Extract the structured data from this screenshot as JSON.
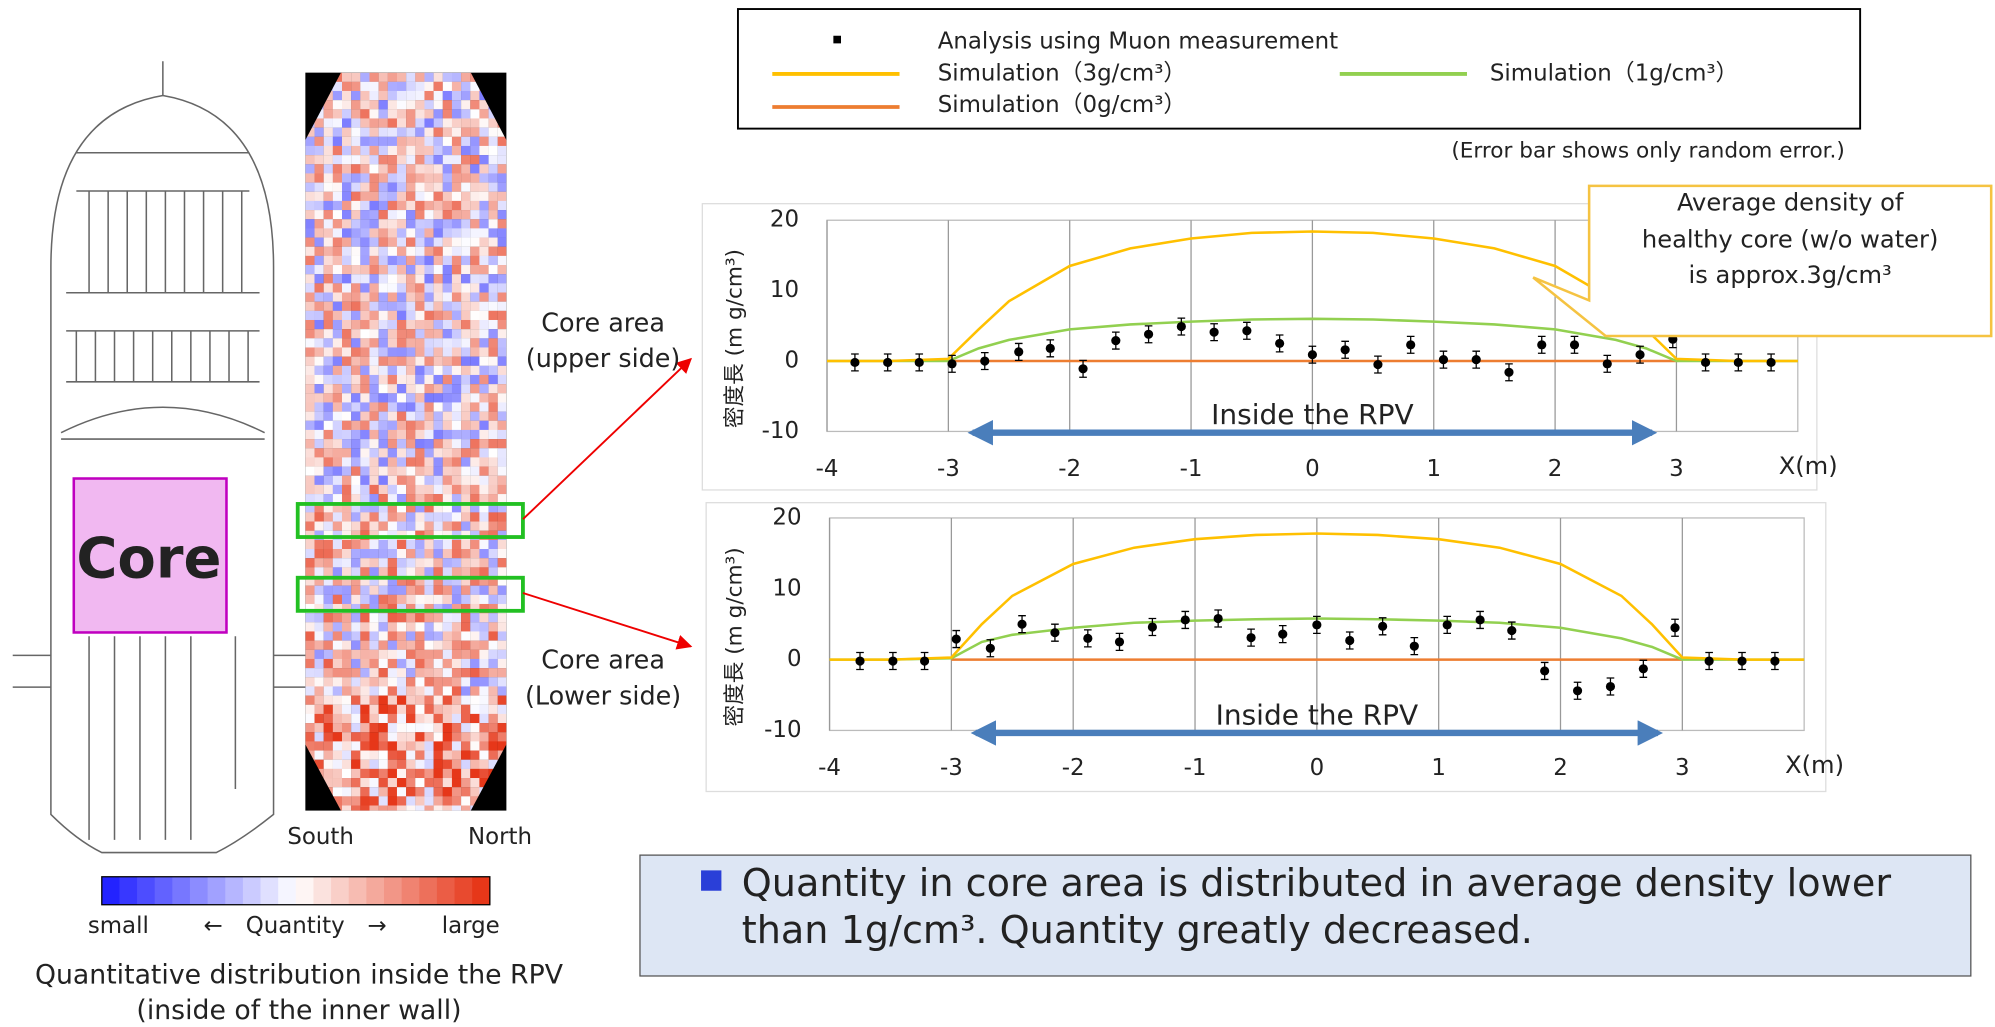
{
  "labels": {
    "core": "Core",
    "south": "South",
    "north": "North",
    "scale_small": "small",
    "scale_mid": "←　Quantity　→",
    "scale_large": "large",
    "caption": [
      "Quantitative distribution inside the RPV",
      "(inside of the inner wall)"
    ],
    "core_upper": [
      "Core area",
      "(upper side)"
    ],
    "core_lower": [
      "Core area",
      "(Lower side)"
    ],
    "error_note": "(Error bar shows only random error.)",
    "callout": [
      "Average density of",
      "healthy core (w/o water)",
      "is approx.3g/cm³"
    ],
    "conclusion": [
      "Quantity in core area is distributed in average density lower",
      "than 1g/cm³. Quantity greatly decreased."
    ]
  },
  "chart_data": [
    {
      "type": "line",
      "y_label": "密度長 (m g/cm³)",
      "x_label": "X(m)",
      "annotation": "Inside the RPV",
      "xlim": [
        -4,
        4
      ],
      "ylim": [
        -10,
        20
      ],
      "xticks": [
        -4,
        -3,
        -2,
        -1,
        0,
        1,
        2,
        3
      ],
      "yticks": [
        -10,
        0,
        10,
        20
      ],
      "grid": true,
      "series": [
        {
          "name": "Analysis using Muon measurement",
          "color": "#000000",
          "x": [
            -3.77,
            -3.5,
            -3.24,
            -2.97,
            -2.7,
            -2.42,
            -2.16,
            -1.89,
            -1.62,
            -1.35,
            -1.08,
            -0.81,
            -0.54,
            -0.27,
            0,
            0.27,
            0.54,
            0.81,
            1.08,
            1.35,
            1.62,
            1.89,
            2.16,
            2.43,
            2.7,
            2.97,
            3.24,
            3.51,
            3.78
          ],
          "values": [
            -0.2,
            -0.2,
            -0.2,
            -0.4,
            0,
            1.3,
            1.8,
            -1.1,
            2.9,
            3.8,
            4.9,
            4.1,
            4.3,
            2.5,
            0.9,
            1.6,
            -0.5,
            2.3,
            0.2,
            0.2,
            -1.6,
            2.3,
            2.3,
            -0.4,
            0.9,
            3.1,
            -0.2,
            -0.2,
            -0.2
          ],
          "errors": [
            1.2,
            1.2,
            1.2,
            1.2,
            1.2,
            1.2,
            1.2,
            1.2,
            1.2,
            1.2,
            1.2,
            1.2,
            1.2,
            1.2,
            1.2,
            1.2,
            1.2,
            1.2,
            1.2,
            1.2,
            1.2,
            1.2,
            1.2,
            1.2,
            1.2,
            1.2,
            1.2,
            1.2,
            1.2
          ]
        },
        {
          "name": "Simulation（3g/cm³）",
          "color": "#ffc000",
          "x": [
            -4,
            -3.5,
            -3,
            -2.75,
            -2.5,
            -2,
            -1.5,
            -1,
            -0.5,
            0,
            0.5,
            1,
            1.5,
            2,
            2.5,
            2.75,
            3,
            3.5,
            4
          ],
          "values": [
            0,
            0,
            0.3,
            4.5,
            8.5,
            13.5,
            16,
            17.4,
            18.2,
            18.4,
            18.2,
            17.4,
            16,
            13.5,
            8.5,
            4.5,
            0.3,
            0,
            0
          ]
        },
        {
          "name": "Simulation（1g/cm³）",
          "color": "#92d050",
          "x": [
            -4,
            -3.5,
            -3,
            -2.75,
            -2.5,
            -2,
            -1.5,
            -1,
            -0.5,
            0,
            0.5,
            1,
            1.5,
            2,
            2.5,
            2.75,
            3,
            3.5,
            4
          ],
          "values": [
            0,
            0,
            0,
            1.8,
            3,
            4.5,
            5.2,
            5.6,
            5.9,
            6,
            5.9,
            5.6,
            5.2,
            4.5,
            3,
            1.8,
            0,
            0,
            0
          ]
        },
        {
          "name": "Simulation（0g/cm³）",
          "color": "#ed7d31",
          "x": [
            -3,
            3
          ],
          "values": [
            0,
            0
          ]
        }
      ]
    },
    {
      "type": "line",
      "y_label": "密度長 (m g/cm³)",
      "x_label": "X(m)",
      "annotation": "Inside the RPV",
      "xlim": [
        -4,
        4
      ],
      "ylim": [
        -10,
        20
      ],
      "xticks": [
        -4,
        -3,
        -2,
        -1,
        0,
        1,
        2,
        3
      ],
      "yticks": [
        -10,
        0,
        10,
        20
      ],
      "grid": true,
      "series": [
        {
          "color": "#000000",
          "x": [
            -3.75,
            -3.48,
            -3.22,
            -2.96,
            -2.68,
            -2.42,
            -2.15,
            -1.88,
            -1.62,
            -1.35,
            -1.08,
            -0.81,
            -0.54,
            -0.28,
            0,
            0.27,
            0.54,
            0.8,
            1.07,
            1.34,
            1.6,
            1.87,
            2.14,
            2.41,
            2.68,
            2.94,
            3.22,
            3.49,
            3.76
          ],
          "values": [
            -0.2,
            -0.2,
            -0.2,
            2.9,
            1.6,
            5,
            3.8,
            3,
            2.5,
            4.6,
            5.6,
            5.8,
            3.1,
            3.6,
            4.9,
            2.7,
            4.7,
            1.9,
            4.9,
            5.6,
            4.1,
            -1.6,
            -4.4,
            -3.8,
            -1.3,
            4.5,
            -0.2,
            -0.2,
            -0.2
          ],
          "errors": [
            1.2,
            1.2,
            1.2,
            1.2,
            1.2,
            1.2,
            1.2,
            1.2,
            1.2,
            1.2,
            1.2,
            1.2,
            1.2,
            1.2,
            1.2,
            1.2,
            1.2,
            1.2,
            1.2,
            1.2,
            1.2,
            1.2,
            1.2,
            1.2,
            1.2,
            1.2,
            1.2,
            1.2,
            1.2
          ]
        },
        {
          "color": "#ffc000",
          "x": [
            -4,
            -3.5,
            -3,
            -2.75,
            -2.5,
            -2,
            -1.5,
            -1,
            -0.5,
            0,
            0.5,
            1,
            1.5,
            2,
            2.5,
            2.75,
            3,
            3.5,
            4
          ],
          "values": [
            0,
            0,
            0.3,
            5,
            9,
            13.5,
            15.8,
            17,
            17.6,
            17.8,
            17.6,
            17,
            15.8,
            13.5,
            9,
            5,
            0.3,
            0,
            0
          ]
        },
        {
          "color": "#92d050",
          "x": [
            -4,
            -3.5,
            -3,
            -2.75,
            -2.5,
            -2,
            -1.5,
            -1,
            -0.5,
            0,
            0.5,
            1,
            1.5,
            2,
            2.5,
            2.75,
            3,
            3.5,
            4
          ],
          "values": [
            0,
            0,
            0.2,
            2.5,
            3.5,
            4.5,
            5.2,
            5.5,
            5.7,
            5.8,
            5.7,
            5.5,
            5.2,
            4.5,
            3,
            1.8,
            0,
            0,
            0
          ]
        },
        {
          "color": "#ed7d31",
          "x": [
            -3,
            3
          ],
          "values": [
            0,
            0
          ]
        }
      ]
    }
  ]
}
